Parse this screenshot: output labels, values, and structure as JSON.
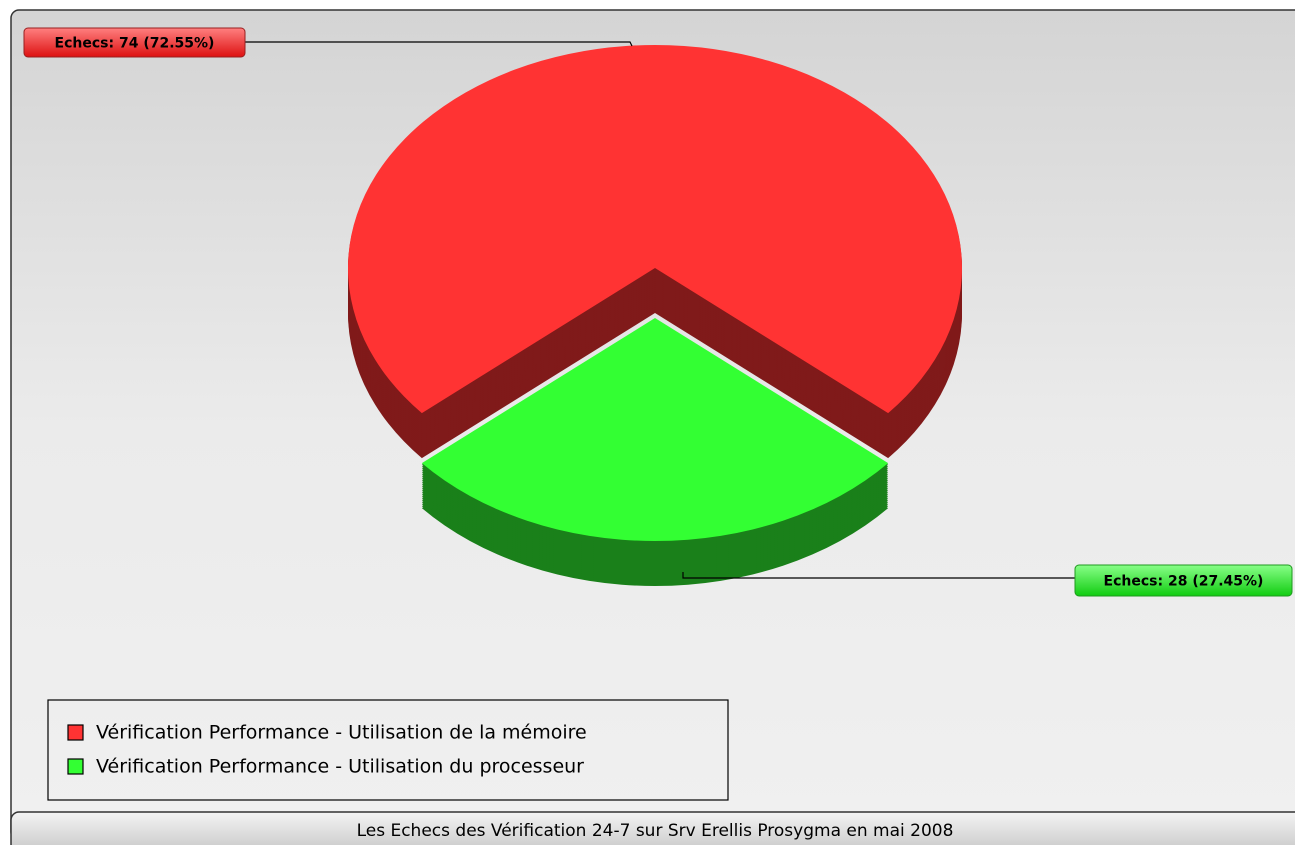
{
  "chart_data": {
    "type": "pie",
    "title": "Les Echecs des Vérification 24-7 sur Srv Erellis Prosygma en mai 2008",
    "categories": [
      "Vérification Performance - Utilisation de la mémoire",
      "Vérification Performance - Utilisation du processeur"
    ],
    "values": [
      74,
      28
    ],
    "value_labels": [
      "Echecs: 74 (72.55%)",
      "Echecs: 28 (27.45%)"
    ],
    "colors": [
      "#ff3333",
      "#33ff33"
    ],
    "legend": "bottom-left"
  }
}
